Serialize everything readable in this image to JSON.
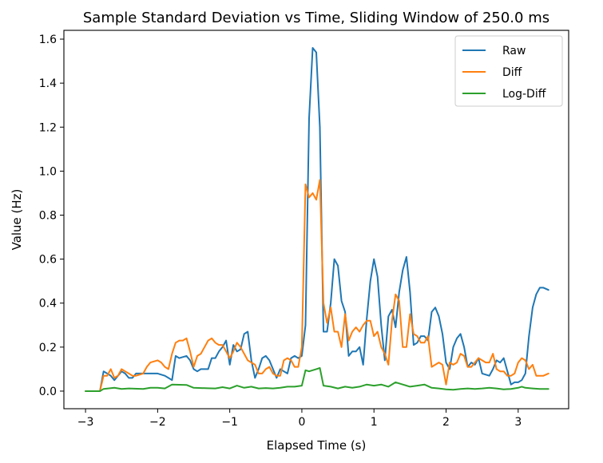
{
  "chart_data": {
    "type": "line",
    "title": "Sample Standard Deviation vs Time, Sliding Window of 250.0 ms",
    "xlabel": "Elapsed Time (s)",
    "ylabel": "Value (Hz)",
    "xlim": [
      -3.3,
      3.7
    ],
    "ylim": [
      -0.08,
      1.64
    ],
    "xticks": [
      -3,
      -2,
      -1,
      0,
      1,
      2,
      3
    ],
    "xtick_labels": [
      "−3",
      "−2",
      "−1",
      "0",
      "1",
      "2",
      "3"
    ],
    "yticks": [
      0.0,
      0.2,
      0.4,
      0.6,
      0.8,
      1.0,
      1.2,
      1.4,
      1.6
    ],
    "ytick_labels": [
      "0.0",
      "0.2",
      "0.4",
      "0.6",
      "0.8",
      "1.0",
      "1.2",
      "1.4",
      "1.6"
    ],
    "legend_position": "top-right",
    "grid": false,
    "series": [
      {
        "name": "Raw",
        "color": "#1f77b4",
        "points": [
          [
            -3.0,
            0.0
          ],
          [
            -2.8,
            0.0
          ],
          [
            -2.75,
            0.09
          ],
          [
            -2.7,
            0.08
          ],
          [
            -2.65,
            0.07
          ],
          [
            -2.6,
            0.05
          ],
          [
            -2.55,
            0.07
          ],
          [
            -2.5,
            0.09
          ],
          [
            -2.45,
            0.08
          ],
          [
            -2.4,
            0.06
          ],
          [
            -2.35,
            0.06
          ],
          [
            -2.3,
            0.08
          ],
          [
            -2.2,
            0.08
          ],
          [
            -2.1,
            0.08
          ],
          [
            -2.0,
            0.08
          ],
          [
            -1.9,
            0.07
          ],
          [
            -1.85,
            0.06
          ],
          [
            -1.8,
            0.05
          ],
          [
            -1.75,
            0.16
          ],
          [
            -1.7,
            0.15
          ],
          [
            -1.6,
            0.16
          ],
          [
            -1.55,
            0.14
          ],
          [
            -1.5,
            0.1
          ],
          [
            -1.45,
            0.09
          ],
          [
            -1.4,
            0.1
          ],
          [
            -1.3,
            0.1
          ],
          [
            -1.25,
            0.15
          ],
          [
            -1.2,
            0.15
          ],
          [
            -1.15,
            0.18
          ],
          [
            -1.1,
            0.2
          ],
          [
            -1.05,
            0.23
          ],
          [
            -1.0,
            0.12
          ],
          [
            -0.95,
            0.21
          ],
          [
            -0.9,
            0.18
          ],
          [
            -0.85,
            0.19
          ],
          [
            -0.8,
            0.26
          ],
          [
            -0.75,
            0.27
          ],
          [
            -0.7,
            0.14
          ],
          [
            -0.65,
            0.06
          ],
          [
            -0.6,
            0.1
          ],
          [
            -0.55,
            0.15
          ],
          [
            -0.5,
            0.16
          ],
          [
            -0.45,
            0.14
          ],
          [
            -0.4,
            0.1
          ],
          [
            -0.35,
            0.06
          ],
          [
            -0.3,
            0.1
          ],
          [
            -0.25,
            0.09
          ],
          [
            -0.2,
            0.08
          ],
          [
            -0.15,
            0.15
          ],
          [
            -0.1,
            0.16
          ],
          [
            -0.05,
            0.15
          ],
          [
            0.0,
            0.16
          ],
          [
            0.05,
            0.3
          ],
          [
            0.1,
            1.24
          ],
          [
            0.15,
            1.56
          ],
          [
            0.2,
            1.54
          ],
          [
            0.25,
            1.2
          ],
          [
            0.3,
            0.27
          ],
          [
            0.35,
            0.27
          ],
          [
            0.4,
            0.4
          ],
          [
            0.45,
            0.6
          ],
          [
            0.5,
            0.57
          ],
          [
            0.55,
            0.41
          ],
          [
            0.6,
            0.36
          ],
          [
            0.65,
            0.16
          ],
          [
            0.7,
            0.18
          ],
          [
            0.75,
            0.18
          ],
          [
            0.8,
            0.2
          ],
          [
            0.85,
            0.12
          ],
          [
            0.9,
            0.33
          ],
          [
            0.95,
            0.5
          ],
          [
            1.0,
            0.6
          ],
          [
            1.05,
            0.52
          ],
          [
            1.1,
            0.3
          ],
          [
            1.15,
            0.14
          ],
          [
            1.2,
            0.34
          ],
          [
            1.25,
            0.37
          ],
          [
            1.3,
            0.29
          ],
          [
            1.35,
            0.45
          ],
          [
            1.4,
            0.55
          ],
          [
            1.45,
            0.61
          ],
          [
            1.5,
            0.45
          ],
          [
            1.55,
            0.21
          ],
          [
            1.6,
            0.22
          ],
          [
            1.65,
            0.25
          ],
          [
            1.7,
            0.25
          ],
          [
            1.75,
            0.23
          ],
          [
            1.8,
            0.36
          ],
          [
            1.85,
            0.38
          ],
          [
            1.9,
            0.34
          ],
          [
            1.95,
            0.26
          ],
          [
            2.0,
            0.13
          ],
          [
            2.05,
            0.1
          ],
          [
            2.1,
            0.2
          ],
          [
            2.15,
            0.24
          ],
          [
            2.2,
            0.26
          ],
          [
            2.25,
            0.2
          ],
          [
            2.3,
            0.11
          ],
          [
            2.35,
            0.13
          ],
          [
            2.4,
            0.12
          ],
          [
            2.45,
            0.15
          ],
          [
            2.5,
            0.08
          ],
          [
            2.6,
            0.07
          ],
          [
            2.65,
            0.1
          ],
          [
            2.7,
            0.14
          ],
          [
            2.75,
            0.13
          ],
          [
            2.8,
            0.15
          ],
          [
            2.85,
            0.09
          ],
          [
            2.9,
            0.03
          ],
          [
            2.95,
            0.04
          ],
          [
            3.0,
            0.04
          ],
          [
            3.05,
            0.05
          ],
          [
            3.1,
            0.08
          ],
          [
            3.15,
            0.25
          ],
          [
            3.2,
            0.38
          ],
          [
            3.25,
            0.44
          ],
          [
            3.3,
            0.47
          ],
          [
            3.35,
            0.47
          ],
          [
            3.42,
            0.46
          ]
        ]
      },
      {
        "name": "Diff",
        "color": "#ff7f0e",
        "points": [
          [
            -3.0,
            0.0
          ],
          [
            -2.8,
            0.0
          ],
          [
            -2.75,
            0.07
          ],
          [
            -2.7,
            0.07
          ],
          [
            -2.65,
            0.1
          ],
          [
            -2.6,
            0.06
          ],
          [
            -2.55,
            0.07
          ],
          [
            -2.5,
            0.1
          ],
          [
            -2.45,
            0.09
          ],
          [
            -2.4,
            0.08
          ],
          [
            -2.35,
            0.07
          ],
          [
            -2.3,
            0.07
          ],
          [
            -2.2,
            0.08
          ],
          [
            -2.15,
            0.11
          ],
          [
            -2.1,
            0.13
          ],
          [
            -2.0,
            0.14
          ],
          [
            -1.95,
            0.13
          ],
          [
            -1.9,
            0.11
          ],
          [
            -1.85,
            0.1
          ],
          [
            -1.8,
            0.17
          ],
          [
            -1.75,
            0.22
          ],
          [
            -1.7,
            0.23
          ],
          [
            -1.65,
            0.23
          ],
          [
            -1.6,
            0.24
          ],
          [
            -1.55,
            0.18
          ],
          [
            -1.5,
            0.11
          ],
          [
            -1.45,
            0.16
          ],
          [
            -1.4,
            0.17
          ],
          [
            -1.35,
            0.2
          ],
          [
            -1.3,
            0.23
          ],
          [
            -1.25,
            0.24
          ],
          [
            -1.2,
            0.22
          ],
          [
            -1.15,
            0.21
          ],
          [
            -1.1,
            0.21
          ],
          [
            -1.05,
            0.18
          ],
          [
            -1.0,
            0.15
          ],
          [
            -0.95,
            0.18
          ],
          [
            -0.9,
            0.22
          ],
          [
            -0.85,
            0.2
          ],
          [
            -0.8,
            0.17
          ],
          [
            -0.75,
            0.14
          ],
          [
            -0.7,
            0.13
          ],
          [
            -0.65,
            0.12
          ],
          [
            -0.6,
            0.08
          ],
          [
            -0.55,
            0.08
          ],
          [
            -0.5,
            0.1
          ],
          [
            -0.45,
            0.11
          ],
          [
            -0.4,
            0.08
          ],
          [
            -0.35,
            0.07
          ],
          [
            -0.3,
            0.07
          ],
          [
            -0.25,
            0.14
          ],
          [
            -0.2,
            0.15
          ],
          [
            -0.15,
            0.14
          ],
          [
            -0.1,
            0.11
          ],
          [
            -0.05,
            0.11
          ],
          [
            0.0,
            0.2
          ],
          [
            0.05,
            0.94
          ],
          [
            0.1,
            0.88
          ],
          [
            0.15,
            0.9
          ],
          [
            0.2,
            0.87
          ],
          [
            0.25,
            0.96
          ],
          [
            0.3,
            0.4
          ],
          [
            0.35,
            0.31
          ],
          [
            0.4,
            0.38
          ],
          [
            0.45,
            0.27
          ],
          [
            0.5,
            0.27
          ],
          [
            0.55,
            0.2
          ],
          [
            0.6,
            0.35
          ],
          [
            0.65,
            0.23
          ],
          [
            0.7,
            0.27
          ],
          [
            0.75,
            0.29
          ],
          [
            0.8,
            0.27
          ],
          [
            0.85,
            0.3
          ],
          [
            0.9,
            0.32
          ],
          [
            0.95,
            0.32
          ],
          [
            1.0,
            0.25
          ],
          [
            1.05,
            0.27
          ],
          [
            1.1,
            0.2
          ],
          [
            1.15,
            0.17
          ],
          [
            1.2,
            0.12
          ],
          [
            1.25,
            0.32
          ],
          [
            1.3,
            0.44
          ],
          [
            1.35,
            0.41
          ],
          [
            1.4,
            0.2
          ],
          [
            1.45,
            0.2
          ],
          [
            1.5,
            0.35
          ],
          [
            1.55,
            0.26
          ],
          [
            1.6,
            0.25
          ],
          [
            1.65,
            0.22
          ],
          [
            1.7,
            0.22
          ],
          [
            1.75,
            0.25
          ],
          [
            1.8,
            0.11
          ],
          [
            1.85,
            0.12
          ],
          [
            1.9,
            0.13
          ],
          [
            1.95,
            0.12
          ],
          [
            2.0,
            0.03
          ],
          [
            2.05,
            0.13
          ],
          [
            2.1,
            0.12
          ],
          [
            2.15,
            0.13
          ],
          [
            2.2,
            0.17
          ],
          [
            2.25,
            0.16
          ],
          [
            2.3,
            0.11
          ],
          [
            2.35,
            0.11
          ],
          [
            2.4,
            0.13
          ],
          [
            2.45,
            0.15
          ],
          [
            2.5,
            0.14
          ],
          [
            2.55,
            0.13
          ],
          [
            2.6,
            0.13
          ],
          [
            2.65,
            0.17
          ],
          [
            2.7,
            0.1
          ],
          [
            2.75,
            0.09
          ],
          [
            2.8,
            0.09
          ],
          [
            2.85,
            0.07
          ],
          [
            2.9,
            0.07
          ],
          [
            2.95,
            0.08
          ],
          [
            3.0,
            0.13
          ],
          [
            3.05,
            0.15
          ],
          [
            3.1,
            0.14
          ],
          [
            3.15,
            0.1
          ],
          [
            3.2,
            0.12
          ],
          [
            3.25,
            0.07
          ],
          [
            3.3,
            0.07
          ],
          [
            3.35,
            0.07
          ],
          [
            3.42,
            0.08
          ]
        ]
      },
      {
        "name": "Log-Diff",
        "color": "#2ca02c",
        "points": [
          [
            -3.0,
            0.0
          ],
          [
            -2.8,
            0.0
          ],
          [
            -2.75,
            0.01
          ],
          [
            -2.6,
            0.015
          ],
          [
            -2.5,
            0.01
          ],
          [
            -2.4,
            0.012
          ],
          [
            -2.2,
            0.01
          ],
          [
            -2.1,
            0.015
          ],
          [
            -2.0,
            0.015
          ],
          [
            -1.9,
            0.012
          ],
          [
            -1.8,
            0.03
          ],
          [
            -1.6,
            0.028
          ],
          [
            -1.5,
            0.015
          ],
          [
            -1.3,
            0.013
          ],
          [
            -1.2,
            0.012
          ],
          [
            -1.1,
            0.018
          ],
          [
            -1.0,
            0.012
          ],
          [
            -0.9,
            0.025
          ],
          [
            -0.8,
            0.015
          ],
          [
            -0.7,
            0.02
          ],
          [
            -0.6,
            0.012
          ],
          [
            -0.5,
            0.014
          ],
          [
            -0.4,
            0.012
          ],
          [
            -0.3,
            0.015
          ],
          [
            -0.2,
            0.02
          ],
          [
            -0.1,
            0.02
          ],
          [
            0.0,
            0.025
          ],
          [
            0.05,
            0.095
          ],
          [
            0.1,
            0.09
          ],
          [
            0.2,
            0.1
          ],
          [
            0.25,
            0.105
          ],
          [
            0.3,
            0.025
          ],
          [
            0.4,
            0.02
          ],
          [
            0.5,
            0.012
          ],
          [
            0.6,
            0.02
          ],
          [
            0.7,
            0.015
          ],
          [
            0.8,
            0.02
          ],
          [
            0.9,
            0.03
          ],
          [
            1.0,
            0.025
          ],
          [
            1.1,
            0.03
          ],
          [
            1.2,
            0.02
          ],
          [
            1.3,
            0.04
          ],
          [
            1.4,
            0.03
          ],
          [
            1.5,
            0.02
          ],
          [
            1.6,
            0.025
          ],
          [
            1.7,
            0.03
          ],
          [
            1.8,
            0.015
          ],
          [
            1.9,
            0.012
          ],
          [
            2.0,
            0.008
          ],
          [
            2.1,
            0.006
          ],
          [
            2.2,
            0.01
          ],
          [
            2.3,
            0.012
          ],
          [
            2.4,
            0.01
          ],
          [
            2.5,
            0.012
          ],
          [
            2.6,
            0.015
          ],
          [
            2.7,
            0.012
          ],
          [
            2.8,
            0.008
          ],
          [
            2.9,
            0.01
          ],
          [
            3.0,
            0.015
          ],
          [
            3.05,
            0.02
          ],
          [
            3.1,
            0.015
          ],
          [
            3.2,
            0.012
          ],
          [
            3.3,
            0.01
          ],
          [
            3.42,
            0.01
          ]
        ]
      }
    ]
  }
}
